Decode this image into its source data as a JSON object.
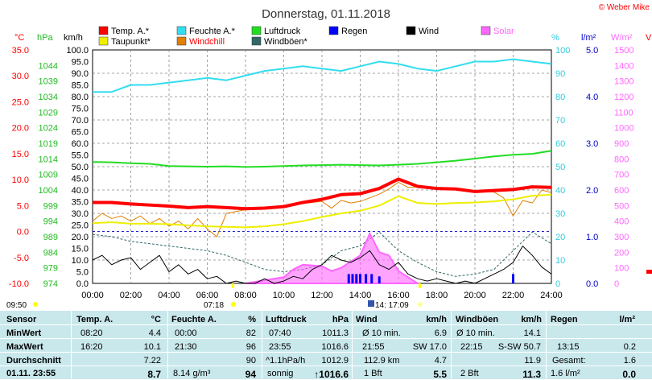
{
  "title": "Donnerstag, 01.11.2018",
  "credit": "© Weber Mike",
  "legend": [
    {
      "label": "Temp. A.*",
      "color": "#ff0000"
    },
    {
      "label": "Feuchte A.*",
      "color": "#33ddee"
    },
    {
      "label": "Luftdruck",
      "color": "#22dd22"
    },
    {
      "label": "Regen",
      "color": "#0000ff"
    },
    {
      "label": "Wind",
      "color": "#000000"
    },
    {
      "label": "Solar",
      "color": "#ff66ff"
    },
    {
      "label": "Taupunkt*",
      "color": "#eeee00"
    },
    {
      "label": "Windchill",
      "color": "#e08000"
    },
    {
      "label": "Windböen*",
      "color": "#336666"
    }
  ],
  "axis_units": {
    "temp": "°C",
    "press": "hPa",
    "wind": "km/h",
    "hum": "%",
    "rain": "l/m²",
    "solar": "W/m²",
    "right_cut": "V"
  },
  "axes": {
    "temp_ticks": [
      "35.0",
      "30.0",
      "25.0",
      "20.0",
      "15.0",
      "10.0",
      "5.0",
      "0.0",
      "-5.0",
      "-10.0"
    ],
    "press_ticks": [
      "1044",
      "1039",
      "1034",
      "1029",
      "1024",
      "1019",
      "1014",
      "1009",
      "1004",
      "999",
      "994",
      "989",
      "984",
      "979",
      "974"
    ],
    "wind_ticks": [
      "100.0",
      "95.0",
      "90.0",
      "85.0",
      "80.0",
      "75.0",
      "70.0",
      "65.0",
      "60.0",
      "55.0",
      "50.0",
      "45.0",
      "40.0",
      "35.0",
      "30.0",
      "25.0",
      "20.0",
      "15.0",
      "10.0",
      "5.0",
      "0.0"
    ],
    "hum_ticks": [
      "100",
      "90",
      "80",
      "70",
      "60",
      "50",
      "40",
      "30",
      "20",
      "10",
      "0"
    ],
    "rain_ticks": [
      "5.0",
      "4.0",
      "3.0",
      "2.0",
      "1.0",
      "0.0"
    ],
    "solar_ticks": [
      "1500",
      "1400",
      "1300",
      "1200",
      "1100",
      "1000",
      "900",
      "800",
      "700",
      "600",
      "500",
      "400",
      "300",
      "200",
      "100",
      "0"
    ],
    "time_ticks": [
      "00:00",
      "02:00",
      "04:00",
      "06:00",
      "08:00",
      "10:00",
      "12:00",
      "14:00",
      "16:00",
      "18:00",
      "20:00",
      "22:00",
      "24:00"
    ]
  },
  "markers": {
    "sunrise": "07:18",
    "solar_noon": "14: 17:09",
    "sunset_left": "09:50"
  },
  "chart_data": {
    "type": "line",
    "x_unit": "hours",
    "x_range": [
      0,
      24
    ],
    "series": [
      {
        "name": "Temp. A.*",
        "axis": "temp",
        "color": "#ff0000",
        "x": [
          0,
          1,
          2,
          3,
          4,
          5,
          6,
          7,
          8,
          9,
          10,
          11,
          12,
          13,
          14,
          15,
          16,
          17,
          18,
          19,
          20,
          21,
          22,
          23,
          24
        ],
        "values": [
          5.6,
          5.6,
          5.3,
          5.1,
          4.9,
          4.6,
          4.8,
          4.6,
          4.4,
          4.5,
          4.8,
          5.6,
          6.2,
          7.1,
          7.3,
          8.3,
          10.1,
          8.7,
          8.3,
          8.2,
          7.7,
          7.9,
          8.1,
          8.6,
          8.5
        ]
      },
      {
        "name": "Feuchte A.*",
        "axis": "hum",
        "color": "#33ddee",
        "x": [
          0,
          1,
          2,
          3,
          4,
          5,
          6,
          7,
          8,
          9,
          10,
          11,
          12,
          13,
          14,
          15,
          16,
          17,
          18,
          19,
          20,
          21,
          22,
          23,
          24
        ],
        "values": [
          82,
          82,
          85,
          85,
          86,
          87,
          88,
          87,
          89,
          91,
          92,
          93,
          92,
          91,
          93,
          95,
          94,
          92,
          91,
          93,
          95,
          95,
          96,
          95,
          94
        ]
      },
      {
        "name": "Luftdruck",
        "axis": "press",
        "color": "#22dd22",
        "x": [
          0,
          1,
          2,
          3,
          4,
          5,
          6,
          7,
          8,
          9,
          10,
          11,
          12,
          13,
          14,
          15,
          16,
          17,
          18,
          19,
          20,
          21,
          22,
          23,
          24
        ],
        "values": [
          1013.0,
          1012.9,
          1012.6,
          1012.4,
          1011.7,
          1011.6,
          1011.5,
          1011.6,
          1011.4,
          1011.5,
          1011.7,
          1011.9,
          1012.0,
          1012.1,
          1012.0,
          1011.9,
          1012.1,
          1012.4,
          1012.9,
          1013.4,
          1014.1,
          1014.8,
          1015.3,
          1015.6,
          1016.6
        ]
      },
      {
        "name": "Taupunkt*",
        "axis": "temp",
        "color": "#eeee00",
        "x": [
          0,
          1,
          2,
          3,
          4,
          5,
          6,
          7,
          8,
          9,
          10,
          11,
          12,
          13,
          14,
          15,
          16,
          17,
          18,
          19,
          20,
          21,
          22,
          23,
          24
        ],
        "values": [
          1.6,
          1.8,
          1.5,
          1.5,
          1.4,
          1.2,
          1.0,
          0.9,
          0.8,
          1.0,
          1.4,
          2.0,
          2.8,
          3.5,
          4.0,
          5.0,
          6.8,
          5.5,
          5.3,
          5.5,
          5.6,
          5.8,
          6.2,
          6.9,
          7.1
        ]
      },
      {
        "name": "Windchill",
        "axis": "temp",
        "color": "#e08000",
        "x": [
          0,
          0.5,
          1,
          1.5,
          2,
          2.5,
          3,
          3.5,
          4,
          4.5,
          5,
          5.5,
          6,
          6.5,
          7,
          8,
          9,
          10,
          11,
          12,
          12.5,
          13,
          13.5,
          14,
          14.5,
          15,
          15.5,
          16,
          16.5,
          17,
          18,
          19,
          20,
          20.5,
          21,
          21.5,
          22,
          22.5,
          23,
          23.5,
          24
        ],
        "values": [
          2.0,
          3.5,
          2.5,
          3.0,
          2.0,
          3.0,
          1.5,
          2.5,
          1.0,
          2.0,
          0.5,
          2.5,
          0.5,
          -1.0,
          3.5,
          4.2,
          4.4,
          4.8,
          5.4,
          5.8,
          4.5,
          6.0,
          5.5,
          5.8,
          6.5,
          7.2,
          8.2,
          9.5,
          8.5,
          8.6,
          8.3,
          8.1,
          7.7,
          7.8,
          7.6,
          6.5,
          3.0,
          6.0,
          5.5,
          8.0,
          7.5
        ]
      },
      {
        "name": "Wind",
        "axis": "wind",
        "color": "#000000",
        "x": [
          0,
          0.5,
          1,
          1.5,
          2,
          2.5,
          3,
          3.5,
          4,
          4.5,
          5,
          5.5,
          6,
          6.5,
          7,
          7.5,
          8,
          8.5,
          9,
          9.5,
          10,
          10.5,
          11,
          11.5,
          12,
          12.5,
          13,
          13.5,
          14,
          14.5,
          15,
          15.5,
          16,
          16.5,
          17,
          17.5,
          18,
          18.5,
          19,
          19.5,
          20,
          20.5,
          21,
          21.5,
          22,
          22.5,
          23,
          23.5,
          24
        ],
        "values": [
          10,
          12,
          8,
          10,
          11,
          6,
          9,
          12,
          5,
          8,
          4,
          6,
          2,
          3,
          0,
          1,
          0,
          0,
          2,
          0,
          1,
          3,
          2,
          6,
          8,
          12,
          10,
          9,
          11,
          14,
          8,
          6,
          9,
          4,
          2,
          1,
          2,
          1,
          0,
          1,
          0,
          2,
          4,
          6,
          9,
          16,
          12,
          7,
          4
        ]
      },
      {
        "name": "Windböen*",
        "axis": "wind",
        "color": "#336666",
        "x": [
          0,
          1,
          2,
          3,
          4,
          5,
          6,
          7,
          8,
          9,
          10,
          11,
          12,
          13,
          14,
          15,
          16,
          17,
          18,
          19,
          20,
          21,
          22,
          23,
          24
        ],
        "values": [
          21,
          20,
          18,
          17,
          16,
          15,
          14,
          12,
          9,
          6,
          5,
          6,
          8,
          14,
          16,
          22,
          14,
          9,
          5,
          3,
          4,
          6,
          14,
          22,
          17
        ]
      },
      {
        "name": "Solar",
        "axis": "solar",
        "color": "#ff66ff",
        "x": [
          8,
          9,
          10,
          10.5,
          11,
          12,
          12.5,
          13,
          13.5,
          14,
          14.5,
          15,
          15.5,
          16,
          17
        ],
        "values": [
          0,
          20,
          40,
          90,
          120,
          110,
          80,
          100,
          140,
          180,
          320,
          200,
          180,
          80,
          0
        ]
      },
      {
        "name": "Regen",
        "axis": "rain",
        "color": "#0000ff",
        "x": [
          13.4,
          13.6,
          13.8,
          14.0,
          14.3,
          14.6,
          15.0,
          22.0
        ],
        "values": [
          0.2,
          0.2,
          0.2,
          0.2,
          0.2,
          0.2,
          0.15,
          0.2
        ]
      }
    ]
  },
  "stats": {
    "headers": {
      "sensor": "Sensor",
      "temp": "Temp. A.",
      "temp_unit": "°C",
      "hum": "Feuchte A.",
      "hum_unit": "%",
      "press": "Luftdruck",
      "press_unit": "hPa",
      "wind": "Wind",
      "wind_unit": "km/h",
      "gust": "Windböen",
      "gust_unit": "km/h",
      "rain": "Regen",
      "rain_unit": "l/m²"
    },
    "row_labels": [
      "MinWert",
      "MaxWert",
      "Durchschnitt",
      "01.11. 23:55"
    ],
    "temp": {
      "min_time": "08:20",
      "min": "4.4",
      "max_time": "16:20",
      "max": "10.1",
      "avg": "7.22",
      "cur": "8.7"
    },
    "hum": {
      "min_time": "00:00",
      "min": "82",
      "max_time": "21:30",
      "max": "96",
      "avg": "90",
      "dew": "8.14 g/m³",
      "cur": "94"
    },
    "press": {
      "min_time": "07:40",
      "min": "1011.3",
      "max_time": "23:55",
      "max": "1016.6",
      "trend": "^1.1hPa/h",
      "trend_val": "1012.9",
      "forecast": "sonnig",
      "cur": "↑1016.6"
    },
    "wind": {
      "r1a": "Ø 10 min.",
      "r1b": "6.9",
      "r2a": "21:55",
      "r2mid": "SW 17.0",
      "r3a": "112.9 km",
      "r3b": "4.7",
      "r4a": "1 Bft",
      "r4b": "5.5"
    },
    "gust": {
      "r1a": "Ø 10 min.",
      "r1b": "14.1",
      "r2a": "22:15",
      "r2mid": "S-SW 50.7",
      "r3b": "11.9",
      "r4a": "2 Bft",
      "r4b": "11.3"
    },
    "rain": {
      "r2a": "13:15",
      "r2b": "0.2",
      "r3a": "Gesamt:",
      "r3b": "1.6",
      "r4a": "1.6 l/m²",
      "r4b": "0.0"
    }
  }
}
